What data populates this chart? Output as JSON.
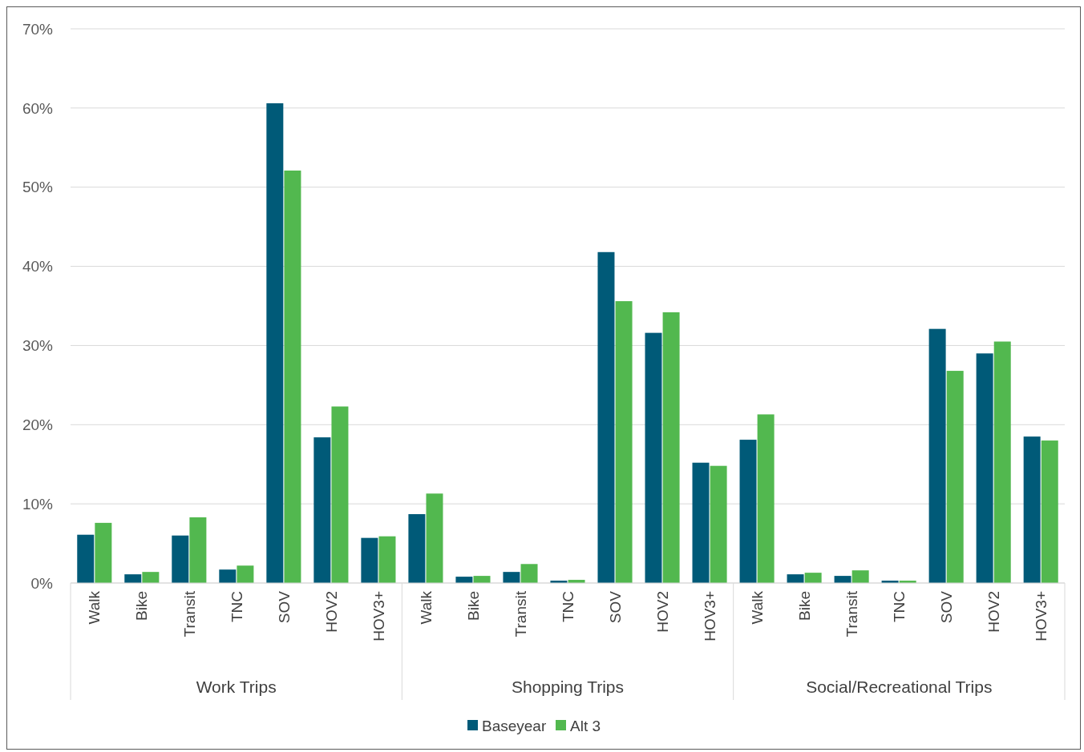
{
  "chart_data": {
    "type": "bar",
    "categories": [
      "Walk",
      "Bike",
      "Transit",
      "TNC",
      "SOV",
      "HOV2",
      "HOV3+",
      "Walk",
      "Bike",
      "Transit",
      "TNC",
      "SOV",
      "HOV2",
      "HOV3+",
      "Walk",
      "Bike",
      "Transit",
      "TNC",
      "SOV",
      "HOV2",
      "HOV3+"
    ],
    "series": [
      {
        "name": "Baseyear",
        "color": "#005a78",
        "values": [
          6.1,
          1.1,
          6.0,
          1.7,
          60.6,
          18.4,
          5.7,
          8.7,
          0.8,
          1.4,
          0.3,
          41.8,
          31.6,
          15.2,
          18.1,
          1.1,
          0.9,
          0.3,
          32.1,
          29.0,
          18.5
        ]
      },
      {
        "name": "Alt 3",
        "color": "#52b84f",
        "values": [
          7.6,
          1.4,
          8.3,
          2.2,
          52.1,
          22.3,
          5.9,
          11.3,
          0.9,
          2.4,
          0.4,
          35.6,
          34.2,
          14.8,
          21.3,
          1.3,
          1.6,
          0.3,
          26.8,
          30.5,
          18.0
        ]
      }
    ],
    "annotations": [
      "Work Trips",
      "Shopping Trips",
      "Social/Recreational Trips"
    ],
    "ylim": [
      0,
      70
    ],
    "yticks": [
      {
        "value": 0,
        "label": "0%"
      },
      {
        "value": 10,
        "label": "10%"
      },
      {
        "value": 20,
        "label": "20%"
      },
      {
        "value": 30,
        "label": "30%"
      },
      {
        "value": 40,
        "label": "40%"
      },
      {
        "value": 50,
        "label": "50%"
      },
      {
        "value": 60,
        "label": "60%"
      },
      {
        "value": 70,
        "label": "70%"
      }
    ],
    "grid": "y",
    "legend": "bottom"
  }
}
